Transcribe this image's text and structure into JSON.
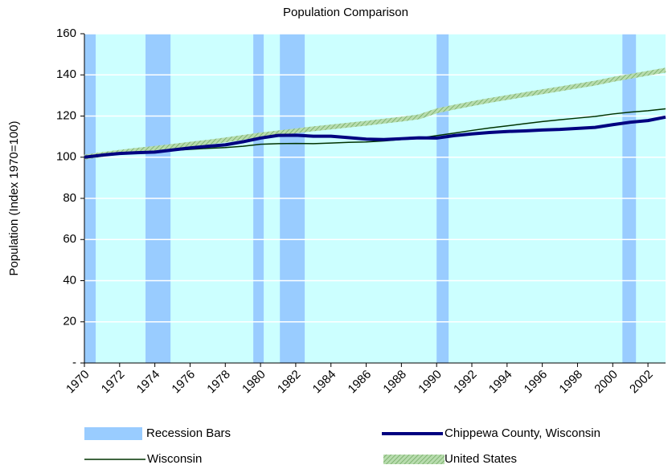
{
  "chart_data": {
    "type": "line",
    "title": "Population Comparison",
    "y_label": "Population (Index 1970=100)",
    "x": [
      1970,
      1971,
      1972,
      1973,
      1974,
      1975,
      1976,
      1977,
      1978,
      1979,
      1980,
      1981,
      1982,
      1983,
      1984,
      1985,
      1986,
      1987,
      1988,
      1989,
      1990,
      1991,
      1992,
      1993,
      1994,
      1995,
      1996,
      1997,
      1998,
      1999,
      2000,
      2001,
      2002,
      2003
    ],
    "xlim": [
      1970,
      2003
    ],
    "xticks": [
      1970,
      1972,
      1974,
      1976,
      1978,
      1980,
      1982,
      1984,
      1986,
      1988,
      1990,
      1992,
      1994,
      1996,
      1998,
      2000,
      2002
    ],
    "ylim": [
      0,
      160
    ],
    "yticks": [
      {
        "value": 0,
        "label": "-"
      },
      20,
      40,
      60,
      80,
      100,
      120,
      140,
      160
    ],
    "grid": true,
    "background": "#ccffff",
    "recession_bars": {
      "name": "Recession Bars",
      "color": "#99ccff",
      "spans": [
        [
          1970.0,
          1970.64
        ],
        [
          1973.47,
          1974.89
        ],
        [
          1979.59,
          1980.18
        ],
        [
          1981.1,
          1982.51
        ],
        [
          1990.0,
          1990.68
        ],
        [
          2000.55,
          2001.32
        ]
      ]
    },
    "series": [
      {
        "name": "Chippewa County, Wisconsin",
        "color": "#000080",
        "width": 4,
        "values": [
          100,
          101,
          101.8,
          102.2,
          102.5,
          103.5,
          104.5,
          105.3,
          106,
          107.5,
          109.3,
          110.6,
          110.7,
          110.2,
          110.2,
          109.5,
          108.8,
          108.6,
          109,
          109.4,
          109.3,
          110.5,
          111.3,
          112,
          112.5,
          112.8,
          113.2,
          113.5,
          114,
          114.5,
          115.8,
          117,
          117.8,
          119.5
        ]
      },
      {
        "name": "Wisconsin",
        "color": "#003300",
        "width": 1.5,
        "values": [
          100,
          101.2,
          102,
          102.5,
          102.8,
          103.3,
          103.8,
          104.3,
          104.7,
          105.3,
          106.3,
          106.6,
          106.7,
          106.6,
          106.9,
          107.2,
          107.4,
          107.9,
          108.6,
          109.2,
          110.5,
          111.7,
          113,
          114.2,
          115.2,
          116.3,
          117.3,
          118.2,
          119,
          119.8,
          121,
          121.9,
          122.6,
          123.5
        ]
      },
      {
        "name": "United States",
        "color": "#9fcf8f",
        "width": 6,
        "values": [
          100,
          101.3,
          102.4,
          103.4,
          104.3,
          105.3,
          106.3,
          107.3,
          108.4,
          109.6,
          110.8,
          111.8,
          112.8,
          113.8,
          114.7,
          115.6,
          116.5,
          117.5,
          118.5,
          119.6,
          122.5,
          124.3,
          126,
          127.6,
          129,
          130.4,
          131.8,
          133.2,
          134.6,
          136,
          137.8,
          139.3,
          140.8,
          142.3
        ]
      }
    ]
  }
}
